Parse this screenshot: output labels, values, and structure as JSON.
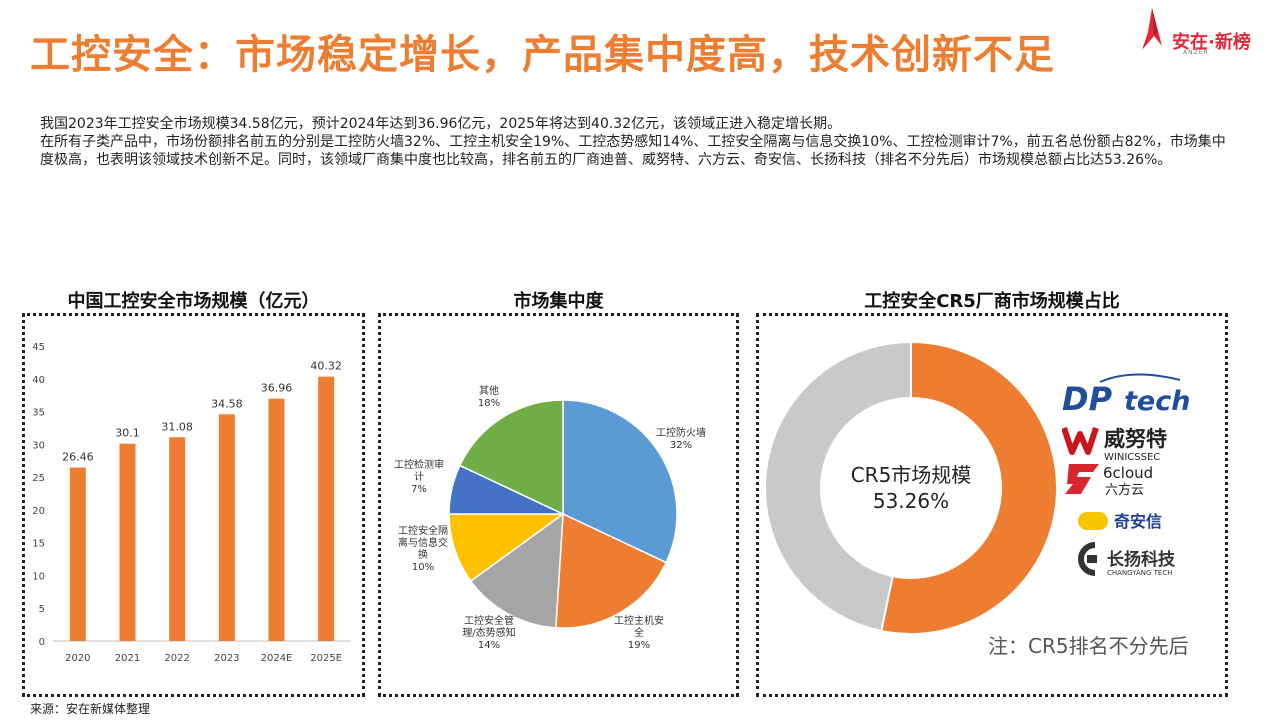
{
  "header": {
    "title": "工控安全：市场稳定增长，产品集中度高，技术创新不足",
    "logo_text": "安在·新榜",
    "logo_sub": "ANZER"
  },
  "intro": {
    "p1": "我国2023年工控安全市场规模34.58亿元，预计2024年达到36.96亿元，2025年将达到40.32亿元，该领域正进入稳定增长期。",
    "p2": "在所有子类产品中，市场份额排名前五的分别是工控防火墙32%、工控主机安全19%、工控态势感知14%、工控安全隔离与信息交换10%、工控检测审计7%，前五名总份额占82%，市场集中度极高，也表明该领域技术创新不足。同时，该领域厂商集中度也比较高，排名前五的厂商迪普、威努特、六方云、奇安信、长扬科技（排名不分先后）市场规模总额占比达53.26%。"
  },
  "colors": {
    "accent": "#ED7D31",
    "pie": [
      "#5B9BD5",
      "#ED7D31",
      "#A5A5A5",
      "#FFC000",
      "#4472C4",
      "#70AD47"
    ],
    "donut_rest": "#C9C9C9"
  },
  "chart_data": [
    {
      "type": "bar",
      "title": "中国工控安全市场规模（亿元）",
      "categories": [
        "2020",
        "2021",
        "2022",
        "2023",
        "2024E",
        "2025E"
      ],
      "values": [
        26.46,
        30.1,
        31.08,
        34.58,
        36.96,
        40.32
      ],
      "value_labels": [
        "26.46",
        "30.1",
        "31.08",
        "34.58",
        "36.96",
        "40.32"
      ],
      "ylim": [
        0,
        45
      ],
      "yticks": [
        0,
        5,
        10,
        15,
        20,
        25,
        30,
        35,
        40,
        45
      ],
      "grid": false
    },
    {
      "type": "pie",
      "title": "市场集中度",
      "slices": [
        {
          "label": [
            "工控防火墙",
            "32%"
          ],
          "value": 32
        },
        {
          "label": [
            "工控主机安",
            "全",
            "19%"
          ],
          "value": 19
        },
        {
          "label": [
            "工控安全管",
            "理/态势感知",
            "14%"
          ],
          "value": 14
        },
        {
          "label": [
            "工控安全隔",
            "离与信息交",
            "换",
            "10%"
          ],
          "value": 10
        },
        {
          "label": [
            "工控检测审",
            "计",
            "7%"
          ],
          "value": 7
        },
        {
          "label": [
            "其他",
            "18%"
          ],
          "value": 18
        }
      ]
    },
    {
      "type": "pie",
      "title": "工控安全CR5厂商市场规模占比",
      "center_label": [
        "CR5市场规模",
        "53.26%"
      ],
      "values": [
        53.26,
        46.74
      ]
    }
  ],
  "vendors": {
    "dptech": {
      "a": "DP",
      "b": "tech"
    },
    "winicssec": {
      "name": "威努特",
      "sub": "WINICSSEC"
    },
    "sixcloud": {
      "a": "6cloud",
      "b": "六方云"
    },
    "qianxin": {
      "name": "奇安信"
    },
    "changyang": {
      "name": "长扬科技",
      "sub": "CHANGYANG TECH"
    }
  },
  "footer": {
    "source": "来源：安在新媒体整理",
    "note": "注：CR5排名不分先后"
  }
}
